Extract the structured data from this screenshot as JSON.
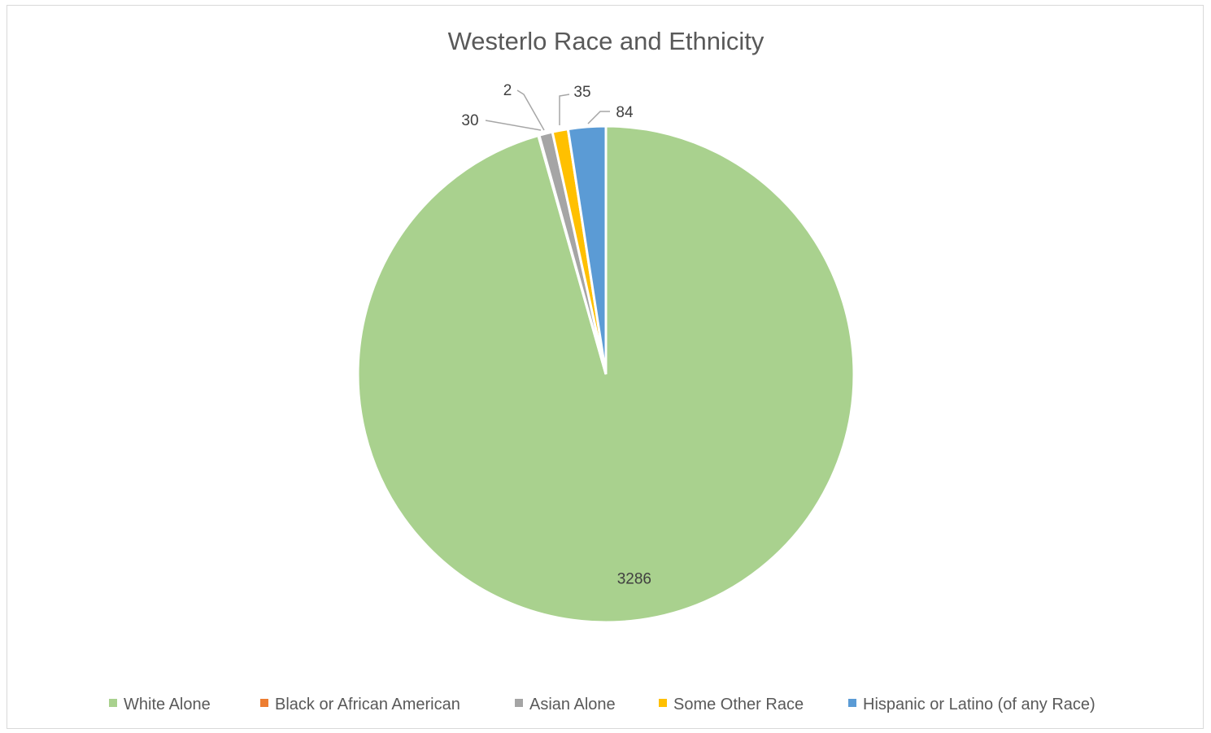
{
  "chart_data": {
    "type": "pie",
    "title": "Westerlo Race and Ethnicity",
    "categories": [
      "White Alone",
      "Black or African American",
      "Asian Alone",
      "Some Other Race",
      "Hispanic or Latino (of any Race)"
    ],
    "values": [
      3286,
      2,
      30,
      35,
      84
    ],
    "colors": [
      "#a9d18e",
      "#ed7d31",
      "#a5a5a5",
      "#ffc000",
      "#5b9bd5"
    ],
    "data_labels": [
      "3286",
      "2",
      "30",
      "35",
      "84"
    ],
    "legend_position": "bottom",
    "start_angle_deg": 0,
    "direction": "clockwise"
  }
}
